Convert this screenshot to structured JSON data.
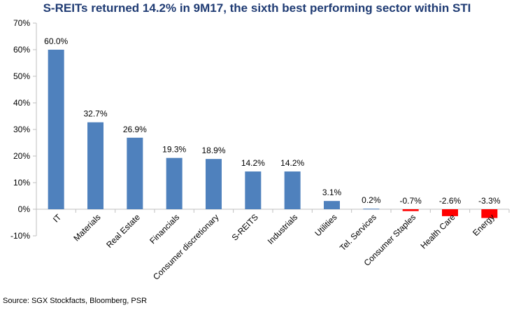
{
  "title": "S-REITs returned 14.2% in 9M17, the sixth best performing sector within STI",
  "source": "Source: SGX Stockfacts, Bloomberg, PSR",
  "colors": {
    "title": "#1f3b73",
    "positive": "#4f81bd",
    "negative": "#ff0000",
    "axis": "#bfbfbf"
  },
  "chart_data": {
    "type": "bar",
    "title": "S-REITs returned 14.2% in 9M17, the sixth best performing sector within STI",
    "xlabel": "",
    "ylabel": "",
    "ylim": [
      -10,
      70
    ],
    "yticks": [
      -10,
      0,
      10,
      20,
      30,
      40,
      50,
      60,
      70
    ],
    "ytick_labels": [
      "-10%",
      "0%",
      "10%",
      "20%",
      "30%",
      "40%",
      "50%",
      "60%",
      "70%"
    ],
    "grid": false,
    "legend": "none",
    "categories": [
      "IT",
      "Materials",
      "Real Estate",
      "Financials",
      "Consumer discretionary",
      "S-REITS",
      "Industrials",
      "Utilities",
      "Tel. Services",
      "Consumer Staples",
      "Health Care",
      "Energy"
    ],
    "values": [
      60.0,
      32.7,
      26.9,
      19.3,
      18.9,
      14.2,
      14.2,
      3.1,
      0.2,
      -0.7,
      -2.6,
      -3.3
    ],
    "data_labels": [
      "60.0%",
      "32.7%",
      "26.9%",
      "19.3%",
      "18.9%",
      "14.2%",
      "14.2%",
      "3.1%",
      "0.2%",
      "-0.7%",
      "-2.6%",
      "-3.3%"
    ]
  }
}
